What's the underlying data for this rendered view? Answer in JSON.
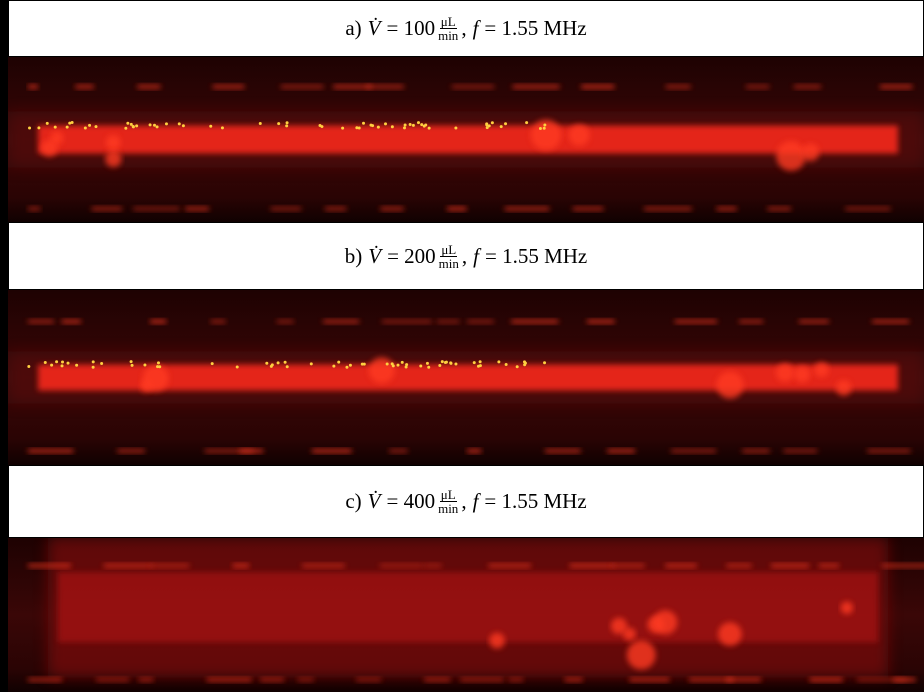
{
  "panels": [
    {
      "label": "a)",
      "variable": "V̇",
      "value": "= 100",
      "unit_numerator": "μL",
      "unit_denominator": "min",
      "separator": ",",
      "freq_variable": "f",
      "freq_value": "= 1.55 MHz"
    },
    {
      "label": "b)",
      "variable": "V̇",
      "value": "= 200",
      "unit_numerator": "μL",
      "unit_denominator": "min",
      "separator": ",",
      "freq_variable": "f",
      "freq_value": "= 1.55 MHz"
    },
    {
      "label": "c)",
      "variable": "V̇",
      "value": "= 400",
      "unit_numerator": "μL",
      "unit_denominator": "min",
      "separator": ",",
      "freq_variable": "f",
      "freq_value": "= 1.55 MHz"
    }
  ]
}
